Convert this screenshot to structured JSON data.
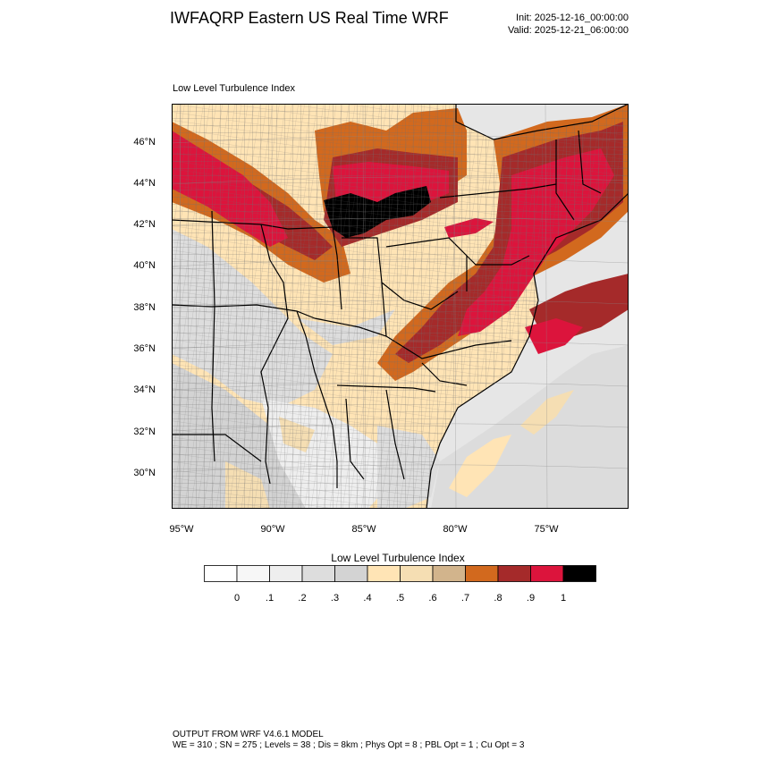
{
  "header": {
    "title": "IWFAQRP Eastern US Real Time WRF",
    "init": "Init: 2025-12-16_00:00:00",
    "valid": "Valid: 2025-12-21_06:00:00"
  },
  "map": {
    "subtitle": "Low Level Turbulence Index",
    "lat_labels": [
      "46°N",
      "44°N",
      "42°N",
      "40°N",
      "38°N",
      "36°N",
      "34°N",
      "32°N",
      "30°N"
    ],
    "lon_labels": [
      "95°W",
      "90°W",
      "85°W",
      "80°W",
      "75°W"
    ]
  },
  "colorbar": {
    "title": "Low Level Turbulence Index",
    "ticks": [
      "0",
      ".1",
      ".2",
      ".3",
      ".4",
      ".5",
      ".6",
      ".7",
      ".8",
      ".9",
      "1"
    ],
    "colors": [
      "#ffffff",
      "#f7f7f7",
      "#eeeeee",
      "#dddddd",
      "#d3d3d3",
      "#ffe4b5",
      "#f5deb3",
      "#d2b48c",
      "#d2691e",
      "#a52a2a",
      "#dc143c",
      "#000000"
    ]
  },
  "footer": {
    "line1": "OUTPUT FROM WRF V4.6.1 MODEL",
    "line2": "WE = 310 ; SN = 275 ; Levels = 38 ; Dis = 8km ; Phys Opt = 8 ; PBL Opt = 1 ; Cu Opt = 3"
  }
}
